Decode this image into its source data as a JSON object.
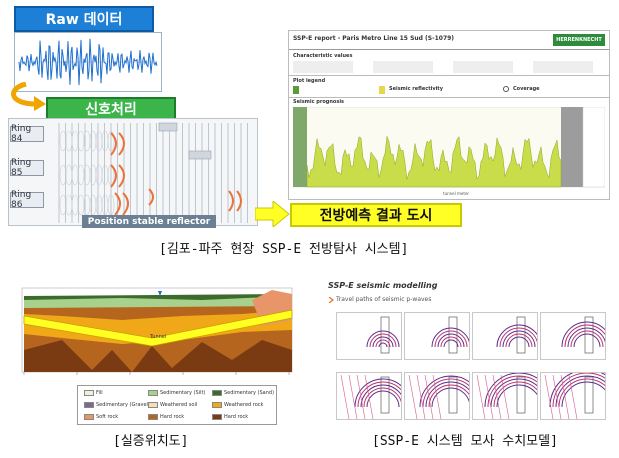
{
  "top_left": {
    "raw_label": "Raw 데이터",
    "processing_label": "신호처리",
    "rings": [
      "Ring 84",
      "Ring 85",
      "Ring 86"
    ],
    "position_label": "Position stable reflector"
  },
  "report": {
    "title": "SSP-E report - Paris Metro Line 15 Sud (S-1079)",
    "logo": "HERRENKNECHT",
    "characteristic_values": "Characteristic values",
    "plot_legend": "Plot legend",
    "seismic_reflectivity": "Seismic reflectivity",
    "coverage": "Coverage",
    "seismic_prognosis": "Seismic prognosis",
    "tunnel_meter": "tunnel meter"
  },
  "forecast_label": "전방예측 결과 도시",
  "captions": {
    "top": "[김포-파주 현장 SSP-E 전방탐사 시스템]",
    "bottom_left": "[실증위치도]",
    "bottom_right": "[SSP-E 시스템 모사 수치모델]"
  },
  "geology": {
    "tunnel_label": "Tunnel",
    "legend": [
      {
        "label": "Fill",
        "color": "#eef2d6"
      },
      {
        "label": "Sedimentary (Silt)",
        "color": "#a9d18e"
      },
      {
        "label": "Sedimentary (Sand)",
        "color": "#3d6b2b"
      },
      {
        "label": "Sedimentary (Gravel)",
        "color": "#7b6a8c"
      },
      {
        "label": "Weathered soil",
        "color": "#f5deb3"
      },
      {
        "label": "Weathered rock",
        "color": "#f0a818"
      },
      {
        "label": "Soft rock",
        "color": "#e8956a"
      },
      {
        "label": "Hard rock",
        "color": "#b5651d"
      },
      {
        "label": "Hard rock",
        "color": "#7a3b12"
      }
    ]
  },
  "model": {
    "title": "SSP-E seismic modelling",
    "subtitle": "Travel paths of seismic p-waves"
  }
}
